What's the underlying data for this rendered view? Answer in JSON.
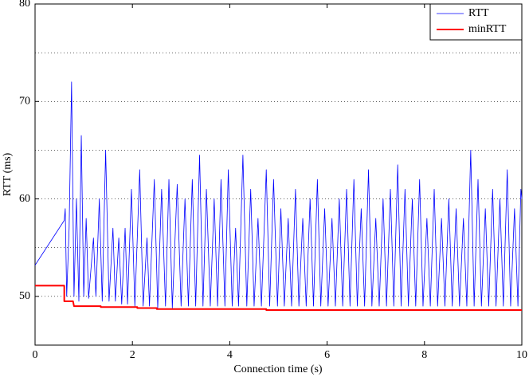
{
  "chart_data": {
    "type": "line",
    "xlabel": "Connection time (s)",
    "ylabel": "RTT (ms)",
    "xlim": [
      0,
      10
    ],
    "xticks": [
      0,
      2,
      4,
      6,
      8,
      10
    ],
    "ylim": [
      45,
      80
    ],
    "yticks": [
      50,
      60,
      70,
      80
    ],
    "yminorgrid": [
      55,
      65,
      75
    ],
    "grid": true,
    "legend": "upper right",
    "series": [
      {
        "name": "RTT",
        "color": "#0000ff",
        "width": 0.8,
        "x": [
          0,
          0.6,
          0.62,
          0.65,
          0.7,
          0.75,
          0.8,
          0.85,
          0.9,
          0.95,
          1.0,
          1.05,
          1.1,
          1.2,
          1.25,
          1.32,
          1.38,
          1.45,
          1.52,
          1.6,
          1.65,
          1.72,
          1.78,
          1.85,
          1.9,
          1.98,
          2.05,
          2.15,
          2.22,
          2.3,
          2.35,
          2.45,
          2.52,
          2.6,
          2.68,
          2.75,
          2.82,
          2.92,
          3.0,
          3.08,
          3.15,
          3.23,
          3.3,
          3.38,
          3.45,
          3.52,
          3.6,
          3.68,
          3.75,
          3.82,
          3.9,
          3.97,
          4.05,
          4.12,
          4.18,
          4.27,
          4.35,
          4.43,
          4.5,
          4.58,
          4.65,
          4.75,
          4.82,
          4.9,
          4.98,
          5.05,
          5.12,
          5.2,
          5.27,
          5.35,
          5.42,
          5.5,
          5.57,
          5.65,
          5.72,
          5.8,
          5.87,
          5.95,
          6.02,
          6.1,
          6.17,
          6.25,
          6.32,
          6.4,
          6.47,
          6.55,
          6.62,
          6.7,
          6.77,
          6.85,
          6.92,
          7.0,
          7.07,
          7.15,
          7.22,
          7.3,
          7.37,
          7.45,
          7.52,
          7.6,
          7.67,
          7.75,
          7.82,
          7.9,
          7.97,
          8.05,
          8.12,
          8.2,
          8.27,
          8.35,
          8.42,
          8.5,
          8.57,
          8.65,
          8.72,
          8.8,
          8.87,
          8.95,
          9.02,
          9.1,
          9.17,
          9.25,
          9.32,
          9.4,
          9.47,
          9.55,
          9.62,
          9.7,
          9.77,
          9.85,
          9.92,
          9.98,
          10
        ],
        "values": [
          53.2,
          57.8,
          59,
          50,
          57,
          72,
          50,
          60,
          49.5,
          66.5,
          50,
          58,
          49.8,
          56,
          50,
          60,
          49.5,
          65,
          49.5,
          57,
          49.5,
          56,
          49.2,
          57,
          49.2,
          61,
          49,
          63,
          49,
          56,
          49,
          62,
          48.8,
          61,
          49,
          62,
          48.8,
          61.5,
          49,
          60,
          49,
          62,
          49,
          64.5,
          49,
          61,
          49,
          60,
          49,
          62,
          49,
          63,
          49,
          57,
          49,
          64.5,
          49,
          61,
          49,
          58,
          49,
          63,
          49,
          62,
          49,
          59,
          49,
          58,
          49,
          61,
          49,
          58,
          49,
          60,
          49,
          62,
          49,
          59,
          49,
          58,
          49,
          60,
          49,
          61,
          49,
          62,
          49,
          59,
          49,
          63,
          49,
          58,
          49,
          60,
          49,
          61,
          49,
          63.5,
          49,
          61,
          49,
          60,
          49,
          62,
          49,
          58,
          49,
          61,
          49,
          58,
          49,
          60,
          49,
          59,
          49,
          58,
          49,
          65,
          49,
          62,
          49,
          59,
          49,
          61,
          49,
          60,
          49,
          63,
          49,
          59,
          49,
          61,
          60
        ]
      },
      {
        "name": "minRTT",
        "color": "#ff0000",
        "width": 2,
        "x": [
          0,
          0.6,
          0.6,
          0.78,
          0.8,
          1.35,
          1.35,
          2.1,
          2.1,
          2.5,
          2.5,
          4.75,
          4.75,
          10
        ],
        "values": [
          51.1,
          51.1,
          49.5,
          49.5,
          49.0,
          49.0,
          48.9,
          48.9,
          48.8,
          48.8,
          48.7,
          48.7,
          48.6,
          48.6
        ]
      }
    ]
  }
}
